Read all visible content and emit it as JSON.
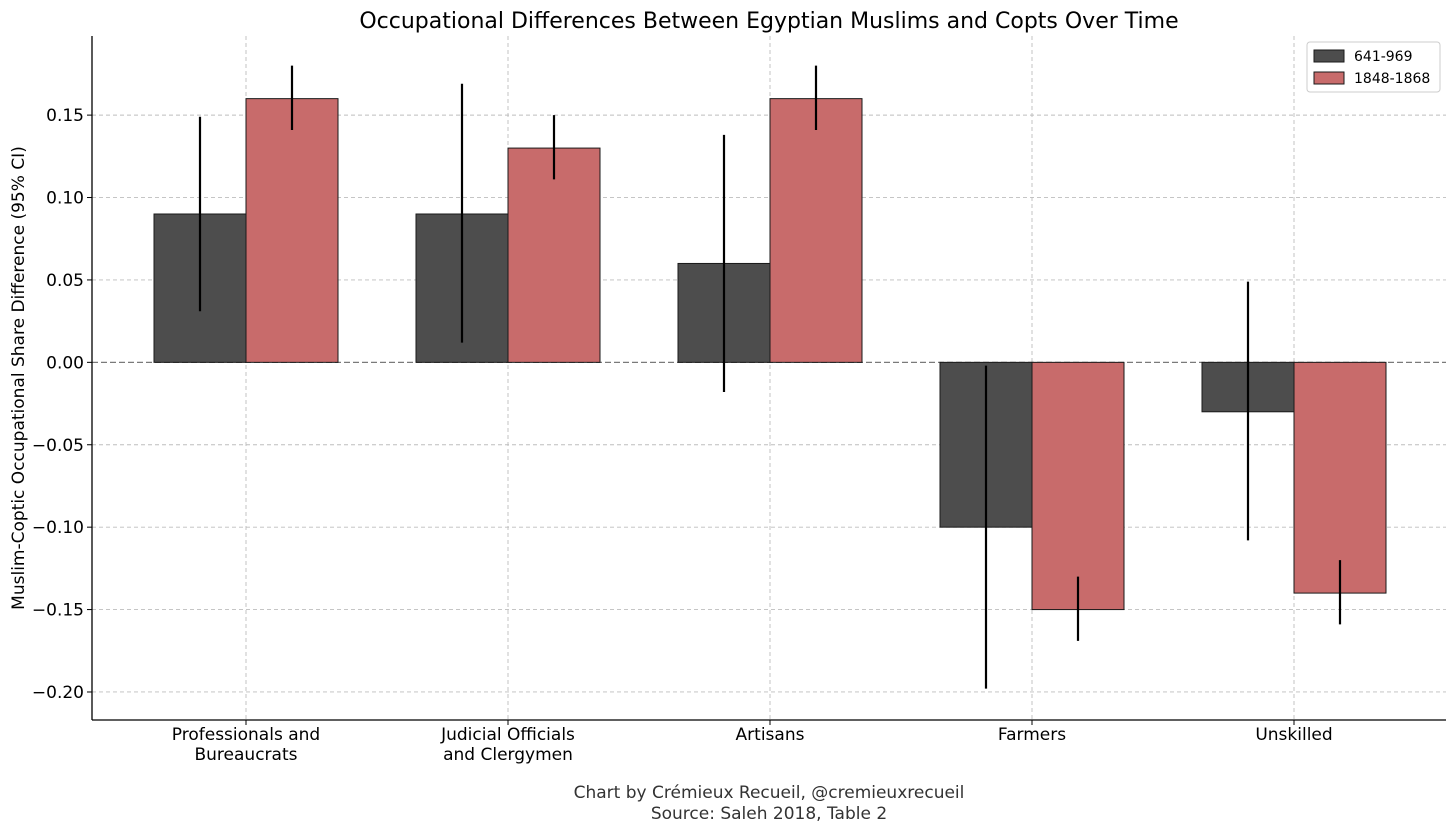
{
  "chart_data": {
    "type": "bar",
    "title": "Occupational Differences Between Egyptian Muslims and Copts Over Time",
    "ylabel": "Muslim-Coptic Occupational Share Difference (95% CI)",
    "xlabel": "",
    "categories": [
      [
        "Professionals and",
        "Bureaucrats"
      ],
      [
        "Judicial Officials",
        "and Clergymen"
      ],
      [
        "Artisans"
      ],
      [
        "Farmers"
      ],
      [
        "Unskilled"
      ]
    ],
    "series": [
      {
        "name": "641-969",
        "color": "#4d4d4d",
        "values": [
          0.09,
          0.09,
          0.06,
          -0.1,
          -0.03
        ],
        "ci_low": [
          0.031,
          0.012,
          -0.018,
          -0.198,
          -0.108
        ],
        "ci_high": [
          0.149,
          0.169,
          0.138,
          -0.002,
          0.049
        ]
      },
      {
        "name": "1848-1868",
        "color": "#c86b6b",
        "values": [
          0.16,
          0.13,
          0.16,
          -0.15,
          -0.14
        ],
        "ci_low": [
          0.141,
          0.111,
          0.141,
          -0.169,
          -0.159
        ],
        "ci_high": [
          0.18,
          0.15,
          0.18,
          -0.13,
          -0.12
        ]
      }
    ],
    "ylim": [
      -0.217,
      0.198
    ],
    "yticks": [
      0.15,
      0.1,
      0.05,
      0.0,
      -0.05,
      -0.1,
      -0.15,
      -0.2
    ],
    "ytick_labels": [
      "0.15",
      "0.10",
      "0.05",
      "0.00",
      "−0.05",
      "−0.10",
      "−0.15",
      "−0.20"
    ],
    "grid": true,
    "zero_line": "dashed",
    "legend_position": "top-right",
    "credit": [
      "Chart by Crémieux Recueil, @cremieuxrecueil",
      "Source: Saleh 2018, Table 2"
    ]
  }
}
